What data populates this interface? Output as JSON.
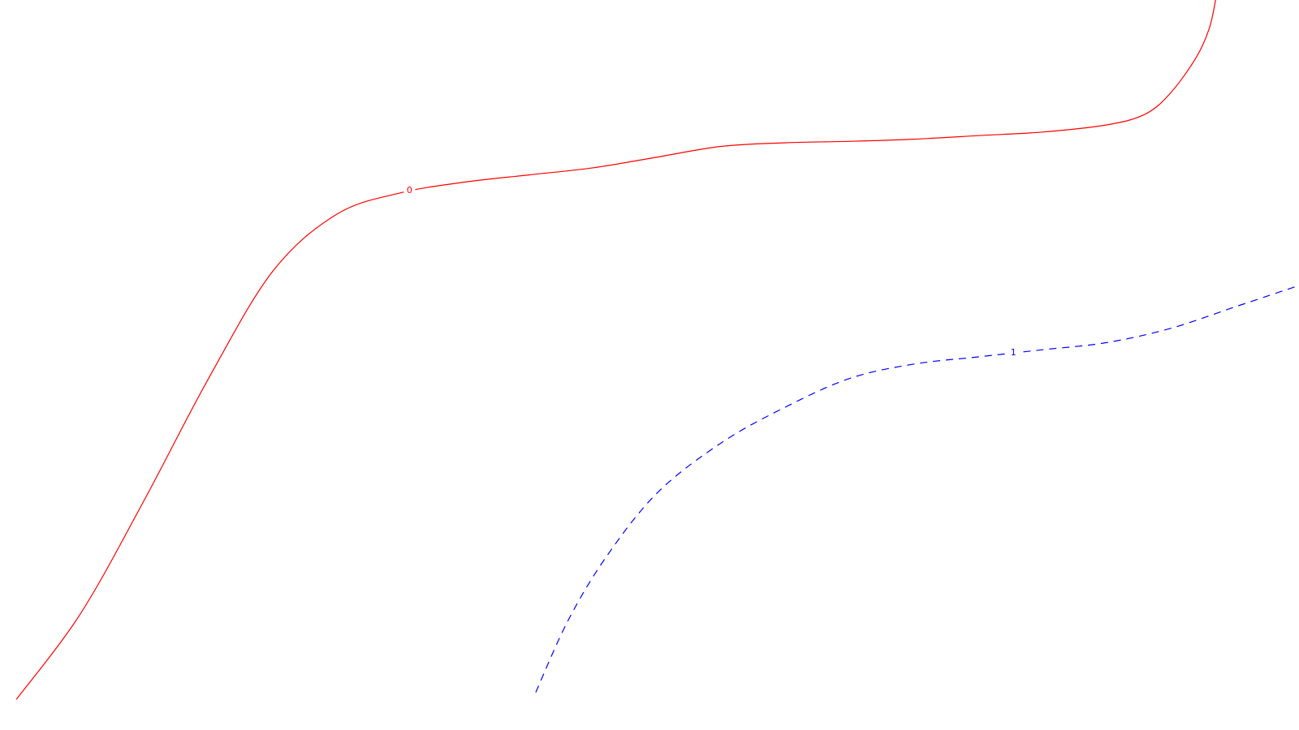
{
  "chart_data": {
    "type": "line",
    "grid": false,
    "series": [
      {
        "label": "0",
        "color": "#ff0000",
        "style": "solid",
        "x": [
          0.0,
          0.05,
          0.1,
          0.15,
          0.2,
          0.25,
          0.3,
          0.35,
          0.4,
          0.45,
          0.5,
          0.55,
          0.6,
          0.65,
          0.7,
          0.75,
          0.8,
          0.85,
          0.88,
          0.9,
          0.92,
          0.93,
          0.935
        ],
        "y": [
          0.02,
          0.14,
          0.3,
          0.47,
          0.62,
          0.7,
          0.73,
          0.745,
          0.755,
          0.765,
          0.78,
          0.795,
          0.8,
          0.802,
          0.805,
          0.81,
          0.815,
          0.825,
          0.84,
          0.87,
          0.92,
          0.96,
          1.0
        ]
      },
      {
        "label": "1",
        "color": "#0000ff",
        "style": "dashed",
        "x": [
          0.405,
          0.43,
          0.46,
          0.5,
          0.55,
          0.6,
          0.65,
          0.7,
          0.75,
          0.8,
          0.85,
          0.9,
          0.95,
          1.0
        ],
        "y": [
          0.03,
          0.13,
          0.22,
          0.31,
          0.38,
          0.43,
          0.47,
          0.49,
          0.5,
          0.51,
          0.52,
          0.54,
          0.57,
          0.6
        ]
      }
    ],
    "labels": [
      {
        "text": "0",
        "series": 0,
        "at": 0.43
      },
      {
        "text": "1",
        "series": 1,
        "at": 0.68
      }
    ]
  }
}
